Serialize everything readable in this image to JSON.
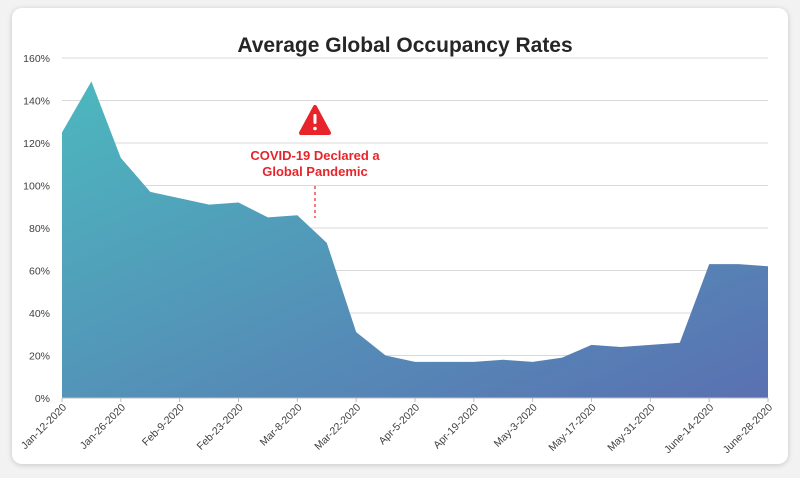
{
  "chart_data": {
    "type": "area",
    "title": "Average Global Occupancy Rates",
    "xlabel": "",
    "ylabel": "",
    "ylim": [
      0,
      160
    ],
    "y_ticks": [
      "0%",
      "20%",
      "40%",
      "60%",
      "80%",
      "100%",
      "120%",
      "140%",
      "160%"
    ],
    "x_ticks": [
      "Jan-12-2020",
      "Jan-26-2020",
      "Feb-9-2020",
      "Feb-23-2020",
      "Mar-8-2020",
      "Mar-22-2020",
      "Apr-5-2020",
      "Apr-19-2020",
      "May-3-2020",
      "May-17-2020",
      "May-31-2020",
      "June-14-2020",
      "June-28-2020"
    ],
    "x": [
      "2020-01-12",
      "2020-01-19",
      "2020-01-26",
      "2020-02-02",
      "2020-02-09",
      "2020-02-16",
      "2020-02-23",
      "2020-03-01",
      "2020-03-08",
      "2020-03-15",
      "2020-03-22",
      "2020-03-29",
      "2020-04-05",
      "2020-04-12",
      "2020-04-19",
      "2020-04-26",
      "2020-05-03",
      "2020-05-10",
      "2020-05-17",
      "2020-05-24",
      "2020-05-31",
      "2020-06-07",
      "2020-06-14",
      "2020-06-21",
      "2020-06-28"
    ],
    "values": [
      125,
      149,
      113,
      97,
      94,
      91,
      92,
      85,
      86,
      73,
      31,
      20,
      17,
      17,
      17,
      18,
      17,
      19,
      25,
      24,
      25,
      26,
      63,
      63,
      62
    ],
    "grid": true,
    "fill_colors": [
      "#4cb8be",
      "#5a70b2"
    ],
    "annotation": {
      "lines": [
        "COVID-19 Declared a",
        "Global Pandemic"
      ],
      "color": "#e8242b",
      "icon": "warning-icon",
      "x": "2020-03-11"
    }
  }
}
